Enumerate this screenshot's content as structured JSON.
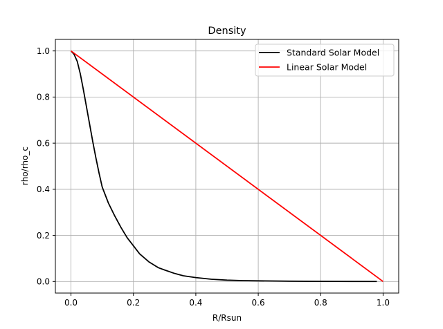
{
  "chart_data": {
    "type": "line",
    "title": "Density",
    "xlabel": "R/Rsun",
    "ylabel": "rho/rho_c",
    "xlim": [
      -0.05,
      1.05
    ],
    "ylim": [
      -0.05,
      1.05
    ],
    "xticks": [
      0.0,
      0.2,
      0.4,
      0.6,
      0.8,
      1.0
    ],
    "yticks": [
      0.0,
      0.2,
      0.4,
      0.6,
      0.8,
      1.0
    ],
    "xtick_labels": [
      "0.0",
      "0.2",
      "0.4",
      "0.6",
      "0.8",
      "1.0"
    ],
    "ytick_labels": [
      "0.0",
      "0.2",
      "0.4",
      "0.6",
      "0.8",
      "1.0"
    ],
    "grid": true,
    "legend_position": "top-right",
    "series": [
      {
        "name": "Standard Solar Model",
        "color": "#000000",
        "x": [
          0.0,
          0.01,
          0.02,
          0.03,
          0.04,
          0.05,
          0.06,
          0.07,
          0.08,
          0.09,
          0.1,
          0.12,
          0.14,
          0.16,
          0.18,
          0.2,
          0.22,
          0.25,
          0.28,
          0.3,
          0.33,
          0.36,
          0.4,
          0.45,
          0.5,
          0.55,
          0.6,
          0.7,
          0.8,
          0.9,
          0.98
        ],
        "y": [
          1.0,
          0.985,
          0.955,
          0.9,
          0.83,
          0.755,
          0.68,
          0.605,
          0.535,
          0.47,
          0.41,
          0.34,
          0.285,
          0.235,
          0.19,
          0.155,
          0.12,
          0.085,
          0.06,
          0.05,
          0.036,
          0.025,
          0.017,
          0.01,
          0.006,
          0.004,
          0.003,
          0.0015,
          0.0008,
          0.0004,
          0.0002
        ]
      },
      {
        "name": "Linear Solar Model",
        "color": "#ff0000",
        "x": [
          0.0,
          1.0
        ],
        "y": [
          1.0,
          0.0
        ]
      }
    ]
  }
}
